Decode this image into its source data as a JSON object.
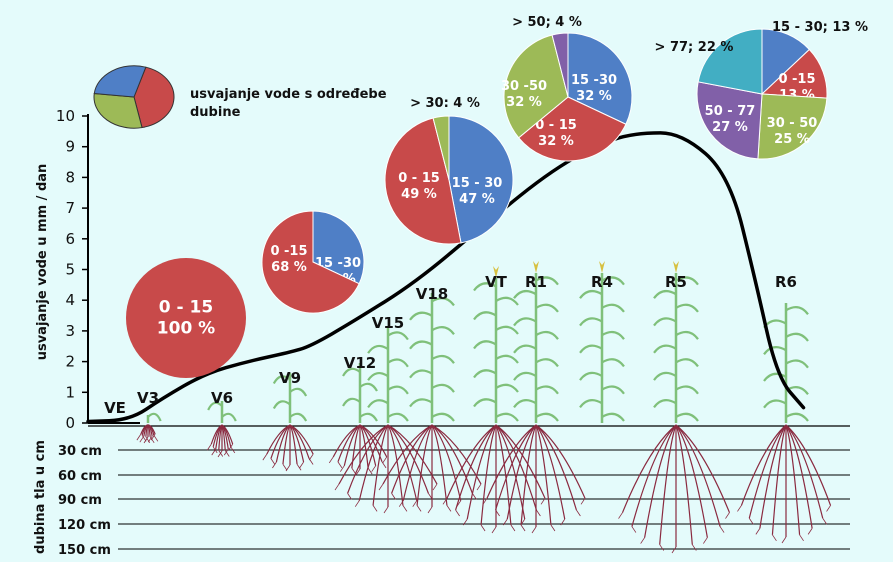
{
  "colors": {
    "background": "#e4fbfb",
    "red": "#c84a4a",
    "blue": "#4f7fc6",
    "green": "#9dba57",
    "purple": "#8160a8",
    "cyan": "#42aec3",
    "plant": "#7fc07a",
    "root": "#8a2a40",
    "curve": "#000000"
  },
  "legend": {
    "text": "usvajanje vode s određebe dubine"
  },
  "chart_data": {
    "type": "line",
    "ylabel": "usvajanje vode u mm / dan",
    "ylim": [
      0,
      10
    ],
    "yticks": [
      "0",
      "1",
      "2",
      "3",
      "4",
      "5",
      "6",
      "7",
      "8",
      "9",
      "10"
    ],
    "stages": [
      "VE",
      "V3",
      "V6",
      "V9",
      "V12",
      "V15",
      "V18",
      "VT",
      "R1",
      "R4",
      "R5",
      "R6"
    ],
    "curve": [
      {
        "x": 0.0,
        "y": 0.05
      },
      {
        "x": 0.8,
        "y": 0.1
      },
      {
        "x": 1.4,
        "y": 0.8
      },
      {
        "x": 2.2,
        "y": 1.6
      },
      {
        "x": 3.0,
        "y": 2.0
      },
      {
        "x": 3.8,
        "y": 2.3
      },
      {
        "x": 4.2,
        "y": 2.5
      },
      {
        "x": 5.0,
        "y": 3.3
      },
      {
        "x": 6.2,
        "y": 4.6
      },
      {
        "x": 7.5,
        "y": 6.5
      },
      {
        "x": 8.8,
        "y": 8.3
      },
      {
        "x": 9.8,
        "y": 9.2
      },
      {
        "x": 10.4,
        "y": 9.45
      },
      {
        "x": 11.2,
        "y": 9.45
      },
      {
        "x": 12.1,
        "y": 8.1
      },
      {
        "x": 12.6,
        "y": 4.6
      },
      {
        "x": 13.0,
        "y": 1.5
      },
      {
        "x": 13.5,
        "y": 0.5
      }
    ]
  },
  "soil": {
    "title": "dubina tla u cm",
    "depths": [
      "30 cm",
      "60 cm",
      "90 cm",
      "120 cm",
      "150 cm"
    ]
  },
  "pies": [
    {
      "slices": [
        {
          "label": "0 - 15",
          "value": 100,
          "color": "red",
          "text": "0 - 15\n100 %"
        }
      ]
    },
    {
      "slices": [
        {
          "label": "15 -30",
          "value": 32,
          "color": "blue",
          "text": "15 -30\n32 %"
        },
        {
          "label": "0 -15",
          "value": 68,
          "color": "red",
          "text": "0 -15\n68 %"
        }
      ]
    },
    {
      "slices": [
        {
          "label": "15 - 30",
          "value": 47,
          "color": "blue",
          "text": "15 - 30\n47 %"
        },
        {
          "label": "0 - 15",
          "value": 49,
          "color": "red",
          "text": "0 - 15\n49 %"
        },
        {
          "label": "> 30",
          "value": 4,
          "color": "green",
          "text": "> 30: 4 %"
        }
      ]
    },
    {
      "slices": [
        {
          "label": "15 -30",
          "value": 32,
          "color": "blue",
          "text": "15 -30\n32 %"
        },
        {
          "label": "0 - 15",
          "value": 32,
          "color": "red",
          "text": "0 - 15\n32 %"
        },
        {
          "label": "30 -50",
          "value": 32,
          "color": "green",
          "text": "30 -50\n32 %"
        },
        {
          "label": "> 50",
          "value": 4,
          "color": "purple",
          "text": "> 50; 4 %"
        }
      ]
    },
    {
      "slices": [
        {
          "label": "15 - 30",
          "value": 13,
          "color": "blue",
          "text": "15 - 30; 13 %"
        },
        {
          "label": "0 -15",
          "value": 13,
          "color": "red",
          "text": "0 -15\n13 %"
        },
        {
          "label": "30 - 50",
          "value": 25,
          "color": "green",
          "text": "30 - 50\n25 %"
        },
        {
          "label": "50 - 77",
          "value": 27,
          "color": "purple",
          "text": "50 - 77\n27 %"
        },
        {
          "label": "> 77",
          "value": 22,
          "color": "cyan",
          "text": "> 77; 22 %"
        }
      ]
    }
  ]
}
